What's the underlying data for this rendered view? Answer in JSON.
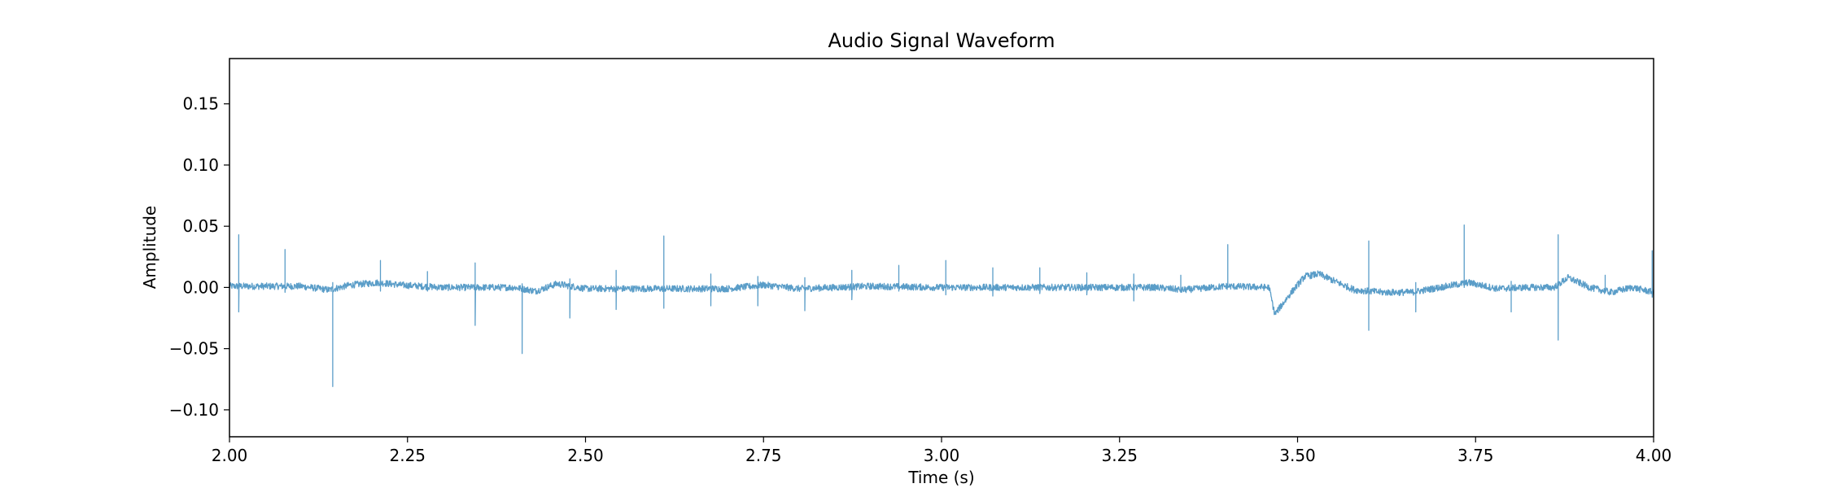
{
  "chart_data": {
    "type": "line",
    "title": "Audio Signal Waveform",
    "xlabel": "Time (s)",
    "ylabel": "Amplitude",
    "xlim": [
      2.0,
      4.0
    ],
    "ylim": [
      -0.122,
      0.187
    ],
    "xticks": [
      2.0,
      2.25,
      2.5,
      2.75,
      3.0,
      3.25,
      3.5,
      3.75,
      4.0
    ],
    "xtick_labels": [
      "2.00",
      "2.25",
      "2.50",
      "2.75",
      "3.00",
      "3.25",
      "3.50",
      "3.75",
      "4.00"
    ],
    "yticks": [
      -0.1,
      -0.05,
      0.0,
      0.05,
      0.1,
      0.15
    ],
    "ytick_labels": [
      "−0.10",
      "−0.05",
      "0.00",
      "0.05",
      "0.10",
      "0.15"
    ],
    "grid": false,
    "line_color": "#5a9dc8",
    "series": [
      {
        "values_description_free": true,
        "baseline": [
          [
            2.0,
            0.001
          ],
          [
            2.1,
            0.001
          ],
          [
            2.14,
            -0.002
          ],
          [
            2.17,
            0.002
          ],
          [
            2.21,
            0.004
          ],
          [
            2.24,
            0.002
          ],
          [
            2.3,
            0.0
          ],
          [
            2.4,
            0.0
          ],
          [
            2.43,
            -0.003
          ],
          [
            2.46,
            0.003
          ],
          [
            2.5,
            -0.001
          ],
          [
            2.6,
            -0.001
          ],
          [
            2.7,
            -0.001
          ],
          [
            2.75,
            0.002
          ],
          [
            2.8,
            -0.001
          ],
          [
            2.9,
            0.001
          ],
          [
            3.0,
            0.0
          ],
          [
            3.1,
            0.0
          ],
          [
            3.2,
            0.0
          ],
          [
            3.3,
            0.0
          ],
          [
            3.34,
            -0.002
          ],
          [
            3.4,
            0.001
          ],
          [
            3.46,
            0.0
          ],
          [
            3.468,
            -0.022
          ],
          [
            3.49,
            -0.005
          ],
          [
            3.51,
            0.009
          ],
          [
            3.53,
            0.011
          ],
          [
            3.56,
            0.003
          ],
          [
            3.58,
            -0.002
          ],
          [
            3.62,
            -0.004
          ],
          [
            3.66,
            -0.004
          ],
          [
            3.7,
            0.0
          ],
          [
            3.74,
            0.004
          ],
          [
            3.78,
            -0.001
          ],
          [
            3.82,
            0.0
          ],
          [
            3.86,
            0.0
          ],
          [
            3.88,
            0.008
          ],
          [
            3.91,
            0.0
          ],
          [
            3.94,
            -0.004
          ],
          [
            3.97,
            0.0
          ],
          [
            4.0,
            -0.004
          ]
        ],
        "spikes": [
          [
            2.013,
            0.043,
            -0.02
          ],
          [
            2.078,
            0.031,
            -0.004
          ],
          [
            2.145,
            0.004,
            -0.081
          ],
          [
            2.212,
            0.022,
            -0.003
          ],
          [
            2.278,
            0.013,
            -0.003
          ],
          [
            2.345,
            0.02,
            -0.031
          ],
          [
            2.411,
            0.003,
            -0.054
          ],
          [
            2.478,
            0.007,
            -0.025
          ],
          [
            2.543,
            0.014,
            -0.018
          ],
          [
            2.61,
            0.042,
            -0.017
          ],
          [
            2.676,
            0.011,
            -0.015
          ],
          [
            2.742,
            0.009,
            -0.015
          ],
          [
            2.808,
            0.008,
            -0.019
          ],
          [
            2.874,
            0.014,
            -0.01
          ],
          [
            2.94,
            0.018,
            -0.003
          ],
          [
            3.006,
            0.022,
            -0.006
          ],
          [
            3.072,
            0.016,
            -0.007
          ],
          [
            3.138,
            0.016,
            -0.005
          ],
          [
            3.204,
            0.012,
            -0.006
          ],
          [
            3.27,
            0.011,
            -0.011
          ],
          [
            3.336,
            0.01,
            -0.004
          ],
          [
            3.402,
            0.035,
            0.0
          ],
          [
            3.6,
            0.038,
            -0.035
          ],
          [
            3.666,
            0.004,
            -0.02
          ],
          [
            3.734,
            0.051,
            0.0
          ],
          [
            3.8,
            0.005,
            -0.02
          ],
          [
            3.866,
            0.043,
            -0.043
          ],
          [
            3.932,
            0.01,
            -0.003
          ],
          [
            3.998,
            0.03,
            -0.008
          ]
        ]
      }
    ]
  }
}
